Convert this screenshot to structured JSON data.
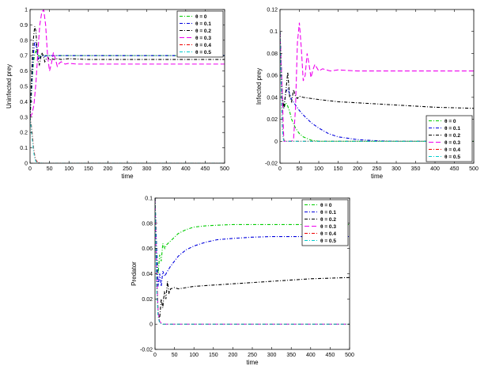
{
  "chart_data": [
    {
      "type": "line",
      "xlabel": "time",
      "ylabel": "Uninfected prey",
      "xlim": [
        0,
        500
      ],
      "ylim": [
        0,
        1
      ],
      "xticks": [
        "0",
        "50",
        "100",
        "150",
        "200",
        "250",
        "300",
        "350",
        "400",
        "450",
        "500"
      ],
      "yticks": [
        "0",
        "0.1",
        "0.2",
        "0.3",
        "0.4",
        "0.5",
        "0.6",
        "0.7",
        "0.8",
        "0.9",
        "1"
      ],
      "legend_position": "lower-right",
      "series": [
        {
          "name": "θ = 0",
          "color": "#00cc00",
          "dash": "4 2 1 2",
          "x": [
            0,
            3,
            6,
            9,
            12,
            15,
            18,
            22,
            26,
            30,
            36,
            45,
            60,
            80,
            120,
            200,
            300,
            400,
            500
          ],
          "y": [
            0.3,
            0.42,
            0.56,
            0.66,
            0.71,
            0.73,
            0.72,
            0.7,
            0.695,
            0.7,
            0.7,
            0.7,
            0.7,
            0.7,
            0.7,
            0.7,
            0.7,
            0.7,
            0.7
          ]
        },
        {
          "name": "θ = 0.1",
          "color": "#0000dd",
          "dash": "4 2 1 2",
          "x": [
            0,
            3,
            6,
            9,
            12,
            15,
            18,
            22,
            26,
            30,
            36,
            45,
            60,
            80,
            120,
            200,
            300,
            400,
            500
          ],
          "y": [
            0.3,
            0.45,
            0.6,
            0.72,
            0.79,
            0.78,
            0.72,
            0.68,
            0.69,
            0.7,
            0.695,
            0.7,
            0.7,
            0.7,
            0.7,
            0.7,
            0.7,
            0.7,
            0.7
          ]
        },
        {
          "name": "θ = 0.2",
          "color": "#000000",
          "dash": "4 2 1 2",
          "x": [
            0,
            3,
            6,
            9,
            12,
            15,
            18,
            21,
            24,
            27,
            30,
            34,
            38,
            42,
            46,
            50,
            56,
            62,
            70,
            80,
            100,
            150,
            200,
            300,
            400,
            500
          ],
          "y": [
            0.3,
            0.5,
            0.7,
            0.82,
            0.89,
            0.86,
            0.75,
            0.66,
            0.64,
            0.68,
            0.72,
            0.7,
            0.66,
            0.68,
            0.69,
            0.67,
            0.68,
            0.675,
            0.68,
            0.675,
            0.68,
            0.675,
            0.675,
            0.675,
            0.675,
            0.675
          ]
        },
        {
          "name": "θ = 0.3",
          "color": "#ee00ee",
          "dash": "6 3",
          "x": [
            0,
            5,
            10,
            15,
            20,
            25,
            30,
            35,
            40,
            45,
            50,
            55,
            60,
            65,
            70,
            75,
            80,
            90,
            100,
            120,
            150,
            200,
            300,
            400,
            500
          ],
          "y": [
            0.3,
            0.32,
            0.38,
            0.52,
            0.72,
            0.9,
            0.98,
            1.0,
            0.9,
            0.7,
            0.6,
            0.65,
            0.72,
            0.68,
            0.63,
            0.65,
            0.66,
            0.645,
            0.65,
            0.645,
            0.645,
            0.645,
            0.645,
            0.645,
            0.645
          ]
        },
        {
          "name": "θ = 0.4",
          "color": "#ee0000",
          "dash": "4 2 1 2",
          "x": [
            0,
            3,
            6,
            9,
            12,
            15,
            20,
            30,
            50,
            100,
            200,
            300,
            400,
            500
          ],
          "y": [
            0.3,
            0.25,
            0.18,
            0.1,
            0.05,
            0.02,
            0.005,
            0,
            0,
            0,
            0,
            0,
            0,
            0
          ]
        },
        {
          "name": "θ = 0.5",
          "color": "#00cccc",
          "dash": "4 2 1 2",
          "x": [
            0,
            3,
            6,
            9,
            12,
            15,
            20,
            30,
            50,
            100,
            200,
            300,
            400,
            500
          ],
          "y": [
            0.3,
            0.23,
            0.15,
            0.08,
            0.035,
            0.012,
            0.003,
            0,
            0,
            0,
            0,
            0,
            0,
            0
          ]
        }
      ]
    },
    {
      "type": "line",
      "xlabel": "time",
      "ylabel": "Infected prey",
      "xlim": [
        0,
        500
      ],
      "ylim": [
        -0.02,
        0.12
      ],
      "xticks": [
        "0",
        "50",
        "100",
        "150",
        "200",
        "250",
        "300",
        "350",
        "400",
        "450",
        "500"
      ],
      "yticks": [
        "-0.02",
        "0",
        "0.02",
        "0.04",
        "0.06",
        "0.08",
        "0.1",
        "0.12"
      ],
      "legend_position": "top-right",
      "series": [
        {
          "name": "θ = 0",
          "color": "#00cc00",
          "dash": "4 2 1 2",
          "x": [
            0,
            3,
            6,
            10,
            15,
            20,
            25,
            30,
            40,
            50,
            60,
            80,
            100,
            150,
            200,
            300,
            400,
            500
          ],
          "y": [
            0.1,
            0.07,
            0.04,
            0.03,
            0.035,
            0.032,
            0.027,
            0.02,
            0.012,
            0.007,
            0.004,
            0.001,
            0,
            0,
            0,
            0,
            0,
            0
          ]
        },
        {
          "name": "θ = 0.1",
          "color": "#0000dd",
          "dash": "4 2 1 2",
          "x": [
            0,
            3,
            6,
            10,
            15,
            20,
            25,
            30,
            40,
            50,
            60,
            80,
            100,
            125,
            150,
            200,
            250,
            300,
            400,
            500
          ],
          "y": [
            0.1,
            0.07,
            0.04,
            0.03,
            0.045,
            0.048,
            0.043,
            0.038,
            0.033,
            0.028,
            0.024,
            0.017,
            0.012,
            0.007,
            0.004,
            0.0015,
            0.0005,
            0,
            0,
            0
          ]
        },
        {
          "name": "θ = 0.2",
          "color": "#000000",
          "dash": "4 2 1 2",
          "x": [
            0,
            3,
            6,
            10,
            15,
            20,
            25,
            30,
            35,
            40,
            45,
            50,
            60,
            80,
            100,
            150,
            200,
            300,
            400,
            500
          ],
          "y": [
            0.1,
            0.07,
            0.04,
            0.03,
            0.045,
            0.063,
            0.04,
            0.036,
            0.047,
            0.041,
            0.039,
            0.041,
            0.04,
            0.039,
            0.038,
            0.036,
            0.035,
            0.033,
            0.031,
            0.03
          ]
        },
        {
          "name": "θ = 0.3",
          "color": "#ee00ee",
          "dash": "6 3",
          "x": [
            0,
            10,
            20,
            30,
            35,
            40,
            45,
            50,
            55,
            60,
            65,
            70,
            75,
            80,
            85,
            90,
            100,
            110,
            130,
            150,
            200,
            300,
            400,
            500
          ],
          "y": [
            0.1,
            0,
            0,
            0,
            0.002,
            0.03,
            0.09,
            0.108,
            0.085,
            0.055,
            0.06,
            0.08,
            0.07,
            0.058,
            0.065,
            0.07,
            0.064,
            0.066,
            0.064,
            0.065,
            0.064,
            0.064,
            0.064,
            0.064
          ]
        },
        {
          "name": "θ = 0.4",
          "color": "#ee0000",
          "dash": "4 2 1 2",
          "x": [
            0,
            2,
            4,
            6,
            8,
            10,
            15,
            20,
            50,
            100,
            200,
            300,
            400,
            500
          ],
          "y": [
            0.1,
            0.07,
            0.04,
            0.015,
            0.004,
            0.001,
            0,
            0,
            0,
            0,
            0,
            0,
            0,
            0
          ]
        },
        {
          "name": "θ = 0.5",
          "color": "#00cccc",
          "dash": "4 2 1 2",
          "x": [
            0,
            2,
            4,
            6,
            8,
            10,
            15,
            20,
            50,
            100,
            200,
            300,
            400,
            500
          ],
          "y": [
            0.1,
            0.068,
            0.035,
            0.012,
            0.003,
            0.0005,
            0,
            0,
            0,
            0,
            0,
            0,
            0,
            0
          ]
        }
      ]
    },
    {
      "type": "line",
      "xlabel": "time",
      "ylabel": "Predator",
      "xlim": [
        0,
        500
      ],
      "ylim": [
        -0.02,
        0.1
      ],
      "xticks": [
        "0",
        "50",
        "100",
        "150",
        "200",
        "250",
        "300",
        "350",
        "400",
        "450",
        "500"
      ],
      "yticks": [
        "-0.02",
        "0",
        "0.02",
        "0.04",
        "0.06",
        "0.08",
        "0.1"
      ],
      "legend_position": "top-right",
      "series": [
        {
          "name": "θ = 0",
          "color": "#00cc00",
          "dash": "4 2 1 2",
          "x": [
            0,
            4,
            8,
            12,
            16,
            20,
            25,
            30,
            40,
            50,
            60,
            80,
            100,
            130,
            160,
            200,
            250,
            300,
            400,
            500
          ],
          "y": [
            0.1,
            0.06,
            0.04,
            0.055,
            0.05,
            0.064,
            0.06,
            0.063,
            0.066,
            0.069,
            0.072,
            0.075,
            0.077,
            0.078,
            0.0785,
            0.079,
            0.079,
            0.079,
            0.079,
            0.079
          ]
        },
        {
          "name": "θ = 0.1",
          "color": "#0000dd",
          "dash": "4 2 1 2",
          "x": [
            0,
            4,
            8,
            12,
            16,
            20,
            25,
            30,
            40,
            50,
            60,
            80,
            100,
            130,
            160,
            200,
            250,
            300,
            400,
            500
          ],
          "y": [
            0.1,
            0.06,
            0.03,
            0.04,
            0.03,
            0.042,
            0.038,
            0.041,
            0.046,
            0.05,
            0.054,
            0.059,
            0.062,
            0.065,
            0.067,
            0.068,
            0.069,
            0.0695,
            0.0695,
            0.0695
          ]
        },
        {
          "name": "θ = 0.2",
          "color": "#000000",
          "dash": "4 2 1 2",
          "x": [
            0,
            4,
            8,
            12,
            16,
            20,
            24,
            28,
            32,
            36,
            40,
            50,
            60,
            80,
            100,
            150,
            200,
            250,
            300,
            400,
            500
          ],
          "y": [
            0.1,
            0.04,
            0.008,
            0.005,
            0.02,
            0.013,
            0.026,
            0.02,
            0.034,
            0.024,
            0.028,
            0.029,
            0.028,
            0.029,
            0.03,
            0.031,
            0.032,
            0.033,
            0.034,
            0.036,
            0.037
          ]
        },
        {
          "name": "θ = 0.3",
          "color": "#ee00ee",
          "dash": "6 3",
          "x": [
            0,
            4,
            8,
            12,
            20,
            40,
            80,
            150,
            250,
            350,
            500
          ],
          "y": [
            0.1,
            0.04,
            0.01,
            0.002,
            0,
            0,
            0,
            0,
            0,
            0,
            0
          ]
        },
        {
          "name": "θ = 0.4",
          "color": "#ee0000",
          "dash": "4 2 1 2",
          "x": [
            0,
            4,
            8,
            12,
            20,
            40,
            80,
            150,
            250,
            350,
            500
          ],
          "y": [
            0.1,
            0.035,
            0.008,
            0.001,
            0,
            0,
            0,
            0,
            0,
            0,
            0
          ]
        },
        {
          "name": "θ = 0.5",
          "color": "#00cccc",
          "dash": "4 2 1 2",
          "x": [
            0,
            4,
            8,
            12,
            20,
            40,
            80,
            150,
            250,
            350,
            500
          ],
          "y": [
            0.1,
            0.03,
            0.006,
            0.001,
            0,
            0,
            0,
            0,
            0,
            0,
            0
          ]
        }
      ]
    }
  ]
}
